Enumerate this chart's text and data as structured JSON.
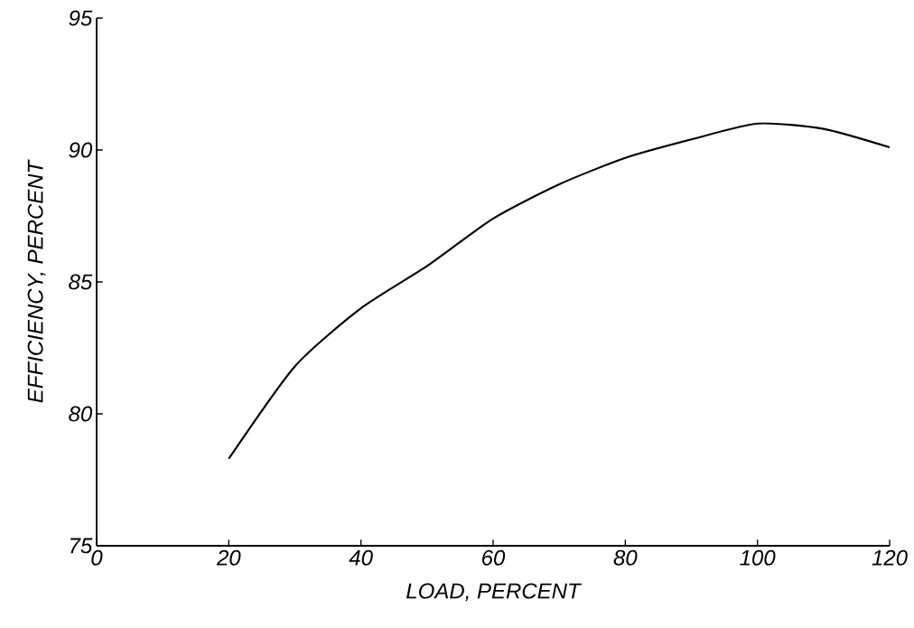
{
  "chart_data": {
    "type": "line",
    "xlabel": "LOAD, PERCENT",
    "ylabel": "EFFICIENCY, PERCENT",
    "x": [
      20,
      30,
      40,
      50,
      60,
      70,
      80,
      90,
      100,
      110,
      120
    ],
    "series": [
      {
        "color": "#000000",
        "values": [
          78.3,
          81.8,
          84.0,
          85.6,
          87.4,
          88.7,
          89.7,
          90.4,
          91.0,
          90.8,
          90.1
        ]
      }
    ],
    "xlim": [
      0,
      120
    ],
    "ylim": [
      75,
      95
    ],
    "xticks": [
      0,
      20,
      40,
      60,
      80,
      100,
      120
    ],
    "yticks": [
      75,
      80,
      85,
      90,
      95
    ],
    "grid": false,
    "marker": "none",
    "line_style": "solid"
  }
}
